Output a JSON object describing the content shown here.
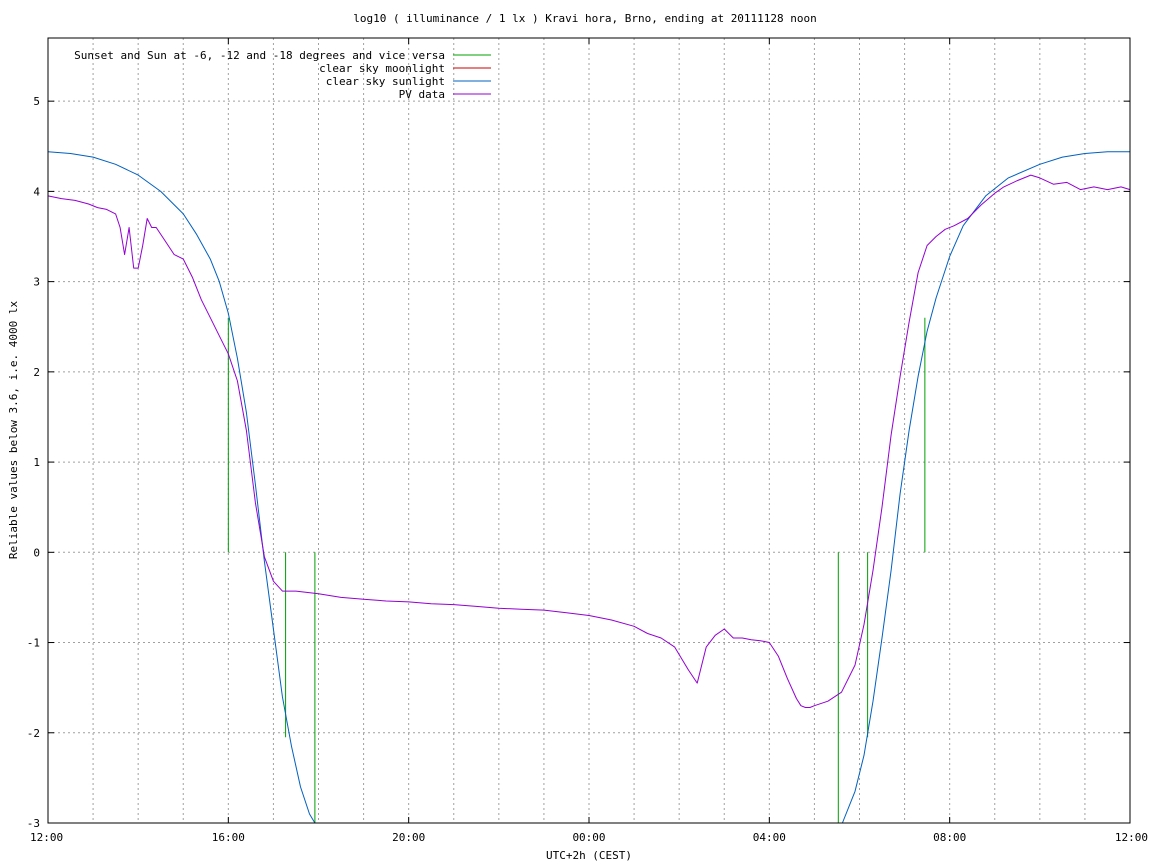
{
  "chart_data": {
    "type": "line",
    "title": "log10 ( illuminance / 1 lx ) Kravi hora, Brno, ending at 20111128 noon",
    "xlabel": "UTC+2h (CEST)",
    "ylabel": "Reliable values below 3.6, i.e. 4000 lx",
    "xlim": [
      0,
      24
    ],
    "ylim": [
      -3,
      5.7
    ],
    "x_unit": "hours after 12:00",
    "x_ticks": [
      {
        "x": 0,
        "label": "12:00"
      },
      {
        "x": 4,
        "label": "16:00"
      },
      {
        "x": 8,
        "label": "20:00"
      },
      {
        "x": 12,
        "label": "00:00"
      },
      {
        "x": 16,
        "label": "04:00"
      },
      {
        "x": 20,
        "label": "08:00"
      },
      {
        "x": 24,
        "label": "12:00"
      }
    ],
    "y_ticks": [
      {
        "y": -3,
        "label": "-3"
      },
      {
        "y": -2,
        "label": "-2"
      },
      {
        "y": -1,
        "label": "-1"
      },
      {
        "y": 0,
        "label": "0"
      },
      {
        "y": 1,
        "label": "1"
      },
      {
        "y": 2,
        "label": "2"
      },
      {
        "y": 3,
        "label": "3"
      },
      {
        "y": 4,
        "label": "4"
      },
      {
        "y": 5,
        "label": "5"
      }
    ],
    "grid": true,
    "legend_position": "top-left",
    "series": [
      {
        "name": "Sunset and Sun at -6, -12 and -18 degrees and vice versa",
        "color": "#00a000",
        "style": "impulses",
        "points": [
          {
            "x": 4.0,
            "y": 2.6
          },
          {
            "x": 5.27,
            "y": -2.05
          },
          {
            "x": 5.92,
            "y": -3.0
          },
          {
            "x": 17.53,
            "y": -3.0
          },
          {
            "x": 18.18,
            "y": -2.05
          },
          {
            "x": 18.8,
            "y": 0.0
          },
          {
            "x": 19.45,
            "y": 2.6
          }
        ]
      },
      {
        "name": "clear sky moonlight",
        "color": "#cc0000",
        "x": [],
        "y": []
      },
      {
        "name": "clear sky sunlight",
        "color": "#0060c0",
        "x": [
          0,
          0.5,
          1,
          1.5,
          2,
          2.5,
          3,
          3.3,
          3.6,
          3.8,
          4.0,
          4.2,
          4.4,
          4.6,
          4.8,
          5.0,
          5.2,
          5.4,
          5.6,
          5.8,
          5.92,
          17.62,
          17.9,
          18.1,
          18.3,
          18.5,
          18.7,
          18.9,
          19.1,
          19.3,
          19.5,
          19.7,
          20.0,
          20.3,
          20.8,
          21.3,
          22.0,
          22.5,
          23.0,
          23.5,
          24.0
        ],
        "y": [
          4.44,
          4.42,
          4.38,
          4.3,
          4.18,
          4.0,
          3.75,
          3.52,
          3.25,
          3.0,
          2.65,
          2.15,
          1.55,
          0.75,
          -0.1,
          -0.85,
          -1.6,
          -2.15,
          -2.6,
          -2.9,
          -3.0,
          -3.0,
          -2.65,
          -2.25,
          -1.65,
          -0.95,
          -0.2,
          0.65,
          1.35,
          1.95,
          2.45,
          2.82,
          3.28,
          3.62,
          3.95,
          4.15,
          4.3,
          4.38,
          4.42,
          4.44,
          4.44
        ]
      },
      {
        "name": "PV data",
        "color": "#9400d3",
        "x": [
          0,
          0.3,
          0.6,
          0.9,
          1.1,
          1.3,
          1.5,
          1.6,
          1.7,
          1.8,
          1.9,
          2.0,
          2.1,
          2.2,
          2.3,
          2.4,
          2.6,
          2.8,
          3.0,
          3.2,
          3.4,
          3.6,
          3.8,
          4.0,
          4.2,
          4.4,
          4.6,
          4.8,
          5.0,
          5.2,
          5.5,
          6.0,
          6.5,
          7.0,
          7.5,
          8.0,
          8.5,
          9.0,
          9.5,
          10.0,
          10.5,
          11.0,
          11.5,
          12.0,
          12.5,
          13.0,
          13.3,
          13.6,
          13.9,
          14.2,
          14.4,
          14.6,
          14.8,
          15.0,
          15.2,
          15.4,
          15.6,
          15.8,
          16.0,
          16.2,
          16.4,
          16.6,
          16.7,
          16.8,
          16.9,
          17.0,
          17.3,
          17.6,
          17.9,
          18.1,
          18.3,
          18.5,
          18.7,
          18.9,
          19.1,
          19.3,
          19.5,
          19.7,
          19.9,
          20.1,
          20.4,
          20.7,
          21.0,
          21.2,
          21.5,
          21.8,
          22.0,
          22.3,
          22.6,
          22.9,
          23.2,
          23.5,
          23.8,
          24.0
        ],
        "y": [
          3.95,
          3.92,
          3.9,
          3.86,
          3.82,
          3.8,
          3.75,
          3.6,
          3.3,
          3.6,
          3.15,
          3.15,
          3.4,
          3.7,
          3.6,
          3.6,
          3.45,
          3.3,
          3.25,
          3.05,
          2.8,
          2.6,
          2.4,
          2.2,
          1.9,
          1.35,
          0.55,
          -0.05,
          -0.32,
          -0.43,
          -0.43,
          -0.46,
          -0.5,
          -0.52,
          -0.54,
          -0.55,
          -0.57,
          -0.58,
          -0.6,
          -0.62,
          -0.63,
          -0.64,
          -0.67,
          -0.7,
          -0.75,
          -0.82,
          -0.9,
          -0.95,
          -1.05,
          -1.3,
          -1.45,
          -1.05,
          -0.92,
          -0.85,
          -0.95,
          -0.95,
          -0.97,
          -0.98,
          -1.0,
          -1.15,
          -1.4,
          -1.62,
          -1.7,
          -1.72,
          -1.72,
          -1.7,
          -1.65,
          -1.55,
          -1.25,
          -0.8,
          -0.2,
          0.5,
          1.3,
          1.95,
          2.55,
          3.1,
          3.4,
          3.5,
          3.58,
          3.62,
          3.7,
          3.85,
          3.98,
          4.05,
          4.12,
          4.18,
          4.15,
          4.08,
          4.1,
          4.02,
          4.05,
          4.02,
          4.05,
          4.02
        ]
      }
    ]
  }
}
